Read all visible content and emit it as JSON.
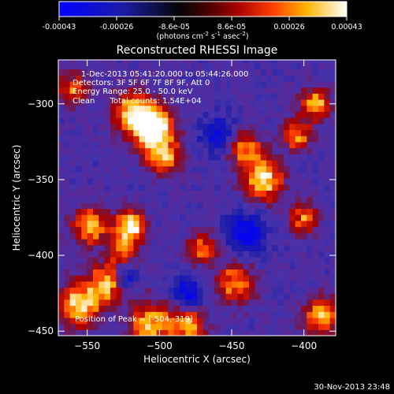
{
  "colorbar": {
    "ticks": [
      "-0.00043",
      "-0.00026",
      "-8.6e-05",
      "8.6e-05",
      "0.00026",
      "0.00043"
    ],
    "units_prefix": "(photons cm",
    "units_exp1": "-2",
    "units_mid": " s",
    "units_exp2": "-1",
    "units_mid2": " asec",
    "units_exp3": "-2",
    "units_suffix": ")",
    "range": [
      -0.00043,
      0.00043
    ],
    "colormap": [
      "#0000ff",
      "#1a1aa0",
      "#000000",
      "#550000",
      "#b30000",
      "#ff4000",
      "#ffaa00",
      "#ffff80",
      "#ffffff"
    ]
  },
  "overlay": {
    "time_range": "1-Dec-2013 05:41:20.000 to 05:44:26.000",
    "detectors": "Detectors: 3F 5F 6F 7F 8F 9F, Att 0",
    "energy": "Energy Range: 25.0 - 50.0 keV",
    "clean": "Clean      Total counts: 1.54E+04",
    "peak": "Position of Peak = [-504,-319]"
  },
  "timestamp": "30-Nov-2013 23:48",
  "chart_data": {
    "type": "heatmap",
    "title": "Reconstructed RHESSI Image",
    "xlabel": "Heliocentric X (arcsec)",
    "ylabel": "Heliocentric Y (arcsec)",
    "xlim": [
      -570,
      -378
    ],
    "ylim": [
      -453,
      -271
    ],
    "x_ticks": [
      -550,
      -500,
      -450,
      -400
    ],
    "y_ticks": [
      -300,
      -350,
      -400,
      -450
    ],
    "x_tick_labels": [
      "−550",
      "−500",
      "−450",
      "−400"
    ],
    "y_tick_labels": [
      "−300",
      "−350",
      "−400",
      "−450"
    ],
    "pixel_arcsec": 4,
    "background_level": 0.35,
    "sources": [
      {
        "x": -505,
        "y": -315,
        "intensity": 1.0,
        "sigma": 9
      },
      {
        "x": -520,
        "y": -305,
        "intensity": 0.55,
        "sigma": 9
      },
      {
        "x": -497,
        "y": -335,
        "intensity": 0.5,
        "sigma": 8
      },
      {
        "x": -548,
        "y": -380,
        "intensity": 0.55,
        "sigma": 8
      },
      {
        "x": -520,
        "y": -380,
        "intensity": 0.65,
        "sigma": 7
      },
      {
        "x": -525,
        "y": -395,
        "intensity": 0.4,
        "sigma": 7
      },
      {
        "x": -535,
        "y": -418,
        "intensity": 0.55,
        "sigma": 9
      },
      {
        "x": -555,
        "y": -432,
        "intensity": 0.6,
        "sigma": 10
      },
      {
        "x": -505,
        "y": -445,
        "intensity": 0.55,
        "sigma": 10
      },
      {
        "x": -480,
        "y": -446,
        "intensity": 0.5,
        "sigma": 8
      },
      {
        "x": -448,
        "y": -418,
        "intensity": 0.45,
        "sigma": 9
      },
      {
        "x": -428,
        "y": -350,
        "intensity": 0.65,
        "sigma": 9
      },
      {
        "x": -440,
        "y": -330,
        "intensity": 0.45,
        "sigma": 8
      },
      {
        "x": -405,
        "y": -320,
        "intensity": 0.45,
        "sigma": 7
      },
      {
        "x": -392,
        "y": -300,
        "intensity": 0.5,
        "sigma": 7
      },
      {
        "x": -400,
        "y": -375,
        "intensity": 0.4,
        "sigma": 7
      },
      {
        "x": -388,
        "y": -440,
        "intensity": 0.55,
        "sigma": 8
      },
      {
        "x": -560,
        "y": -290,
        "intensity": 0.4,
        "sigma": 7
      },
      {
        "x": -470,
        "y": -395,
        "intensity": 0.4,
        "sigma": 7
      }
    ],
    "dips": [
      {
        "x": -525,
        "y": -415,
        "depth": 0.35,
        "sigma": 6
      },
      {
        "x": -460,
        "y": -320,
        "depth": 0.25,
        "sigma": 9
      },
      {
        "x": -480,
        "y": -425,
        "depth": 0.3,
        "sigma": 8
      },
      {
        "x": -440,
        "y": -385,
        "depth": 0.3,
        "sigma": 10
      }
    ]
  }
}
